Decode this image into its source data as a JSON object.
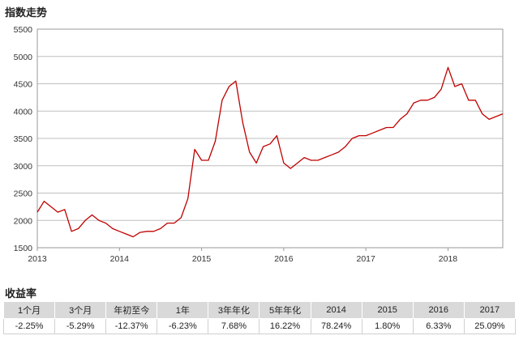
{
  "chart_title": "指数走势",
  "returns_title": "收益率",
  "chart_data": {
    "type": "line",
    "title": "指数走势",
    "xlabel": "",
    "ylabel": "",
    "x_ticks": [
      "2013",
      "2014",
      "2015",
      "2016",
      "2017",
      "2018"
    ],
    "y_ticks": [
      1500,
      2000,
      2500,
      3000,
      3500,
      4000,
      4500,
      5000,
      5500
    ],
    "xlim": [
      "2013-01",
      "2018-09"
    ],
    "ylim": [
      1500,
      5500
    ],
    "grid": "horizontal",
    "legend": "none",
    "series": [
      {
        "color": "#c00000",
        "x": [
          "2013-01",
          "2013-02",
          "2013-03",
          "2013-04",
          "2013-05",
          "2013-06",
          "2013-07",
          "2013-08",
          "2013-09",
          "2013-10",
          "2013-11",
          "2013-12",
          "2014-01",
          "2014-02",
          "2014-03",
          "2014-04",
          "2014-05",
          "2014-06",
          "2014-07",
          "2014-08",
          "2014-09",
          "2014-10",
          "2014-11",
          "2014-12",
          "2015-01",
          "2015-02",
          "2015-03",
          "2015-04",
          "2015-05",
          "2015-06",
          "2015-07",
          "2015-08",
          "2015-09",
          "2015-10",
          "2015-11",
          "2015-12",
          "2016-01",
          "2016-02",
          "2016-03",
          "2016-04",
          "2016-05",
          "2016-06",
          "2016-07",
          "2016-08",
          "2016-09",
          "2016-10",
          "2016-11",
          "2016-12",
          "2017-01",
          "2017-02",
          "2017-03",
          "2017-04",
          "2017-05",
          "2017-06",
          "2017-07",
          "2017-08",
          "2017-09",
          "2017-10",
          "2017-11",
          "2017-12",
          "2018-01",
          "2018-02",
          "2018-03",
          "2018-04",
          "2018-05",
          "2018-06",
          "2018-07",
          "2018-08",
          "2018-09"
        ],
        "values": [
          2150,
          2350,
          2250,
          2150,
          2200,
          1800,
          1850,
          2000,
          2100,
          2000,
          1950,
          1850,
          1800,
          1750,
          1700,
          1780,
          1800,
          1800,
          1850,
          1950,
          1950,
          2050,
          2400,
          3300,
          3100,
          3100,
          3450,
          4200,
          4450,
          4550,
          3800,
          3250,
          3050,
          3350,
          3400,
          3550,
          3050,
          2950,
          3050,
          3150,
          3100,
          3100,
          3150,
          3200,
          3250,
          3350,
          3500,
          3550,
          3550,
          3600,
          3650,
          3700,
          3700,
          3850,
          3950,
          4150,
          4200,
          4200,
          4250,
          4400,
          4800,
          4450,
          4500,
          4200,
          4200,
          3950,
          3850,
          3900,
          3950
        ]
      }
    ]
  },
  "returns_table": {
    "headers": [
      "1个月",
      "3个月",
      "年初至今",
      "1年",
      "3年年化",
      "5年年化",
      "2014",
      "2015",
      "2016",
      "2017"
    ],
    "values": [
      "-2.25%",
      "-5.29%",
      "-12.37%",
      "-6.23%",
      "7.68%",
      "16.22%",
      "78.24%",
      "1.80%",
      "6.33%",
      "25.09%"
    ]
  }
}
